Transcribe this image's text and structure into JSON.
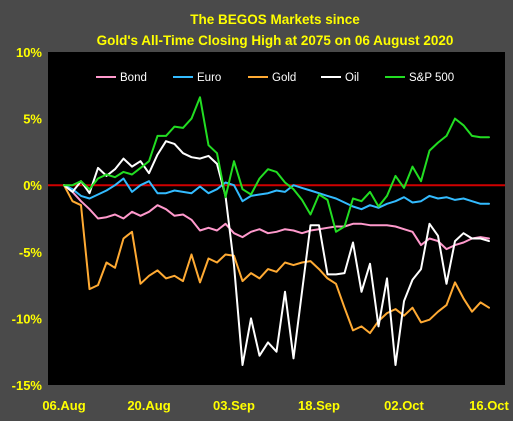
{
  "chart_data": {
    "type": "line",
    "title": "The BEGOS Markets since",
    "subtitle": "Gold's All-Time Closing High at 2075 on 06 August 2020",
    "xlabel": "",
    "ylabel": "",
    "x_tick_labels": [
      "06.Aug",
      "20.Aug",
      "03.Sep",
      "18.Sep",
      "02.Oct",
      "16.Oct"
    ],
    "x_tick_index": [
      0,
      10,
      20,
      30,
      40,
      50
    ],
    "y_tick_values": [
      10,
      5,
      0,
      -5,
      -10,
      -15
    ],
    "y_tick_labels": [
      "10%",
      "5%",
      "0%",
      "-5%",
      "-10%",
      "-15%"
    ],
    "ylim": [
      -15,
      10
    ],
    "n_points": 51,
    "zero_line": true,
    "zero_line_color": "#d00000",
    "grid": false,
    "legend_position": "top",
    "colors": {
      "page_background": "#4a4a4a",
      "plot_background": "#000000",
      "text": "#ffff00",
      "legend_text": "#ffffff"
    },
    "series": [
      {
        "name": "Bond",
        "color": "#ff99cc",
        "values": [
          0,
          -0.5,
          -1.2,
          -1.8,
          -2.5,
          -2.4,
          -2.2,
          -2.5,
          -2.0,
          -2.3,
          -2.0,
          -1.5,
          -1.8,
          -2.3,
          -2.2,
          -2.6,
          -3.4,
          -3.2,
          -3.4,
          -2.9,
          -3.6,
          -3.9,
          -3.5,
          -3.3,
          -3.6,
          -3.5,
          -3.3,
          -3.4,
          -3.6,
          -3.4,
          -3.3,
          -3.2,
          -3.1,
          -3.1,
          -2.9,
          -2.9,
          -3.0,
          -3.0,
          -3.0,
          -3.1,
          -3.3,
          -3.5,
          -4.5,
          -4.0,
          -4.2,
          -4.8,
          -4.5,
          -4.3,
          -4.0,
          -3.9,
          -4.0
        ]
      },
      {
        "name": "Euro",
        "color": "#33bbff",
        "values": [
          0,
          -0.3,
          -0.8,
          -1.0,
          -0.7,
          -0.4,
          0.0,
          0.5,
          -0.5,
          0.0,
          0.3,
          -0.6,
          -0.6,
          -0.4,
          -0.5,
          -0.6,
          -0.1,
          -0.6,
          -0.3,
          0.2,
          0.0,
          -1.2,
          -0.8,
          -0.7,
          -0.6,
          -0.4,
          -0.5,
          0.0,
          -0.2,
          -0.4,
          -0.6,
          -0.8,
          -1.0,
          -1.3,
          -1.6,
          -1.8,
          -1.5,
          -1.7,
          -1.4,
          -1.2,
          -0.9,
          -1.3,
          -1.2,
          -0.8,
          -1.0,
          -0.9,
          -1.1,
          -1.0,
          -1.2,
          -1.4,
          -1.4
        ]
      },
      {
        "name": "Gold",
        "color": "#ffaa33",
        "values": [
          0,
          -1.2,
          -1.5,
          -7.8,
          -7.5,
          -5.8,
          -6.2,
          -4.0,
          -3.5,
          -7.4,
          -6.8,
          -6.4,
          -7.0,
          -6.8,
          -7.2,
          -5.2,
          -7.3,
          -5.5,
          -5.8,
          -5.2,
          -5.3,
          -7.2,
          -6.6,
          -7.0,
          -6.3,
          -6.5,
          -5.8,
          -6.0,
          -5.8,
          -5.7,
          -6.3,
          -7.0,
          -7.4,
          -9.2,
          -10.9,
          -10.6,
          -11.1,
          -10.2,
          -9.6,
          -9.3,
          -9.8,
          -9.2,
          -10.3,
          -10.1,
          -9.5,
          -9.0,
          -7.3,
          -8.5,
          -9.5,
          -8.8,
          -9.2
        ]
      },
      {
        "name": "Oil",
        "color": "#ffffff",
        "values": [
          0,
          -0.5,
          0.3,
          -0.6,
          1.3,
          0.7,
          1.2,
          2.0,
          1.4,
          1.8,
          0.9,
          2.3,
          3.3,
          3.1,
          2.4,
          2.1,
          2.0,
          2.2,
          1.6,
          -0.8,
          -6.0,
          -13.5,
          -10.0,
          -12.8,
          -11.8,
          -12.5,
          -8.0,
          -13.0,
          -8.0,
          -3.0,
          -3.0,
          -6.7,
          -6.7,
          -6.6,
          -4.3,
          -8.0,
          -5.9,
          -10.6,
          -7.0,
          -13.5,
          -8.7,
          -7.1,
          -6.3,
          -2.9,
          -3.8,
          -7.4,
          -4.2,
          -3.6,
          -4.0,
          -4.0,
          -4.2
        ]
      },
      {
        "name": "S&P 500",
        "color": "#22dd22",
        "values": [
          0,
          0.0,
          0.3,
          -0.3,
          0.5,
          0.8,
          0.6,
          1.0,
          0.8,
          1.3,
          1.8,
          3.7,
          3.7,
          4.4,
          4.3,
          5.0,
          6.6,
          3.0,
          2.4,
          -0.9,
          1.8,
          -0.3,
          -0.7,
          0.5,
          1.2,
          1.0,
          0.2,
          -0.3,
          -1.1,
          -2.2,
          -0.7,
          -1.1,
          -3.5,
          -3.1,
          -1.0,
          -1.2,
          -0.5,
          -1.6,
          -0.8,
          0.7,
          -0.2,
          1.4,
          0.3,
          2.6,
          3.2,
          3.7,
          5.0,
          4.5,
          3.7,
          3.6,
          3.6
        ]
      }
    ]
  }
}
